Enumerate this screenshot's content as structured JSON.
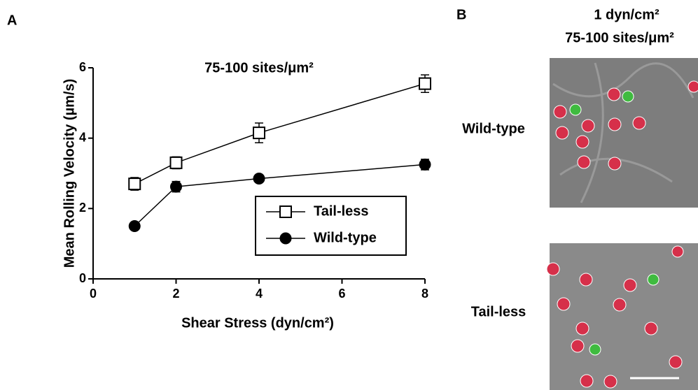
{
  "chart_data": {
    "type": "line",
    "panel_label": "A",
    "title": "75-100 sites/μm²",
    "x_label": "Shear Stress (dyn/cm²)",
    "y_label": "Mean Rolling Velocity (µm/s)",
    "x": [
      1,
      2,
      4,
      8
    ],
    "series": [
      {
        "name": "Tail-less",
        "color": "#000000",
        "marker": "square",
        "values": [
          2.7,
          3.3,
          4.15,
          5.55
        ],
        "errors": [
          0.18,
          0.17,
          0.28,
          0.25
        ]
      },
      {
        "name": "Wild-type",
        "color": "#000000",
        "marker": "circle",
        "values": [
          1.5,
          2.62,
          2.85,
          3.25
        ],
        "errors": [
          0.05,
          0.15,
          0.1,
          0.15
        ]
      }
    ],
    "xlim": [
      0,
      8
    ],
    "xticks": [
      0,
      2,
      4,
      6,
      8
    ],
    "ylim": [
      0,
      6
    ],
    "yticks": [
      0,
      2,
      4,
      6
    ],
    "legend": "lower right"
  },
  "panel_b": {
    "label": "B",
    "header": [
      "1 dyn/cm²",
      "75-100 sites/μm²"
    ],
    "rows": [
      "Wild-type",
      "Tail-less"
    ]
  }
}
